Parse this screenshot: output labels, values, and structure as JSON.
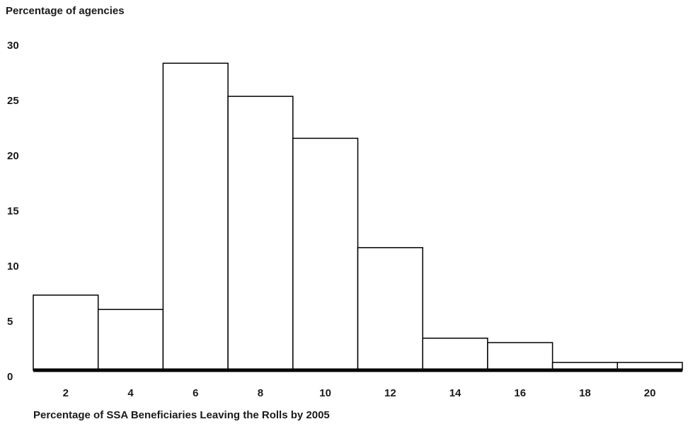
{
  "chart_data": {
    "type": "bar",
    "title": "",
    "ylabel": "Percentage of agencies",
    "xlabel": "Percentage of SSA Beneficiaries Leaving the Rolls by 2005",
    "categories": [
      "2",
      "4",
      "6",
      "8",
      "10",
      "12",
      "14",
      "16",
      "18",
      "20"
    ],
    "values": [
      6.8,
      5.5,
      27.8,
      24.8,
      21.0,
      11.1,
      2.9,
      2.5,
      0.7,
      0.7
    ],
    "y_ticks": [
      "0",
      "5",
      "10",
      "15",
      "20",
      "25",
      "30"
    ],
    "ylim": [
      0,
      30
    ],
    "grid": false,
    "bar_fill": "#ffffff",
    "bar_stroke": "#000000",
    "baseline_color": "#000000"
  }
}
